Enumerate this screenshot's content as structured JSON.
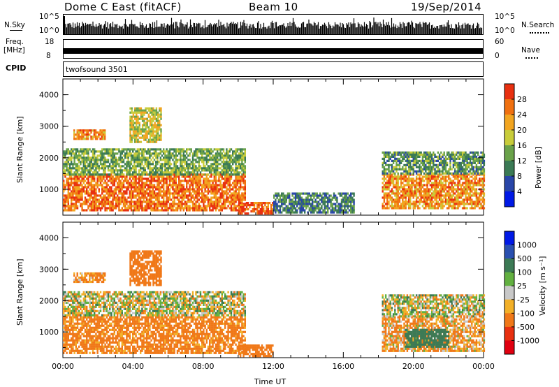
{
  "header": {
    "station": "Dome C East (fitACF)",
    "beam": "Beam 10",
    "date": "19/Sep/2014"
  },
  "strips": {
    "nsky_label": "N.Sky",
    "nsky_ticks": [
      "10^5",
      "10^0"
    ],
    "nsearch_label": "N.Search",
    "nsearch_ticks": [
      "10^5",
      "10^0"
    ],
    "freq_label_1": "Freq.",
    "freq_label_2": "[MHz]",
    "freq_ticks": [
      "18",
      "8"
    ],
    "nave_label": "Nave",
    "nave_ticks": [
      "60",
      "0"
    ],
    "cpid_label": "CPID",
    "cpid_value": "twofsound 3501"
  },
  "chart_data": [
    {
      "type": "heatmap",
      "title": "",
      "ylabel": "Slant Range [km]",
      "xlabel": "",
      "x_ticks": [
        "00:00",
        "04:00",
        "08:00",
        "12:00",
        "16:00",
        "20:00",
        "00:00"
      ],
      "y_ticks": [
        1000,
        2000,
        3000,
        4000
      ],
      "ylim": [
        180,
        4500
      ],
      "xlim_hours": [
        0,
        24
      ],
      "colorbar": {
        "label": "Power [dB]",
        "ticks": [
          4,
          8,
          12,
          16,
          20,
          24,
          28
        ],
        "range": [
          0,
          32
        ],
        "colors": [
          "#0019e6",
          "#2946a8",
          "#3b7a55",
          "#6aa24a",
          "#c8cc3a",
          "#f2a520",
          "#f07010",
          "#e83010"
        ]
      },
      "echo_regions": [
        {
          "t0": 0.0,
          "t1": 10.4,
          "r0": 350,
          "r1": 1500,
          "value": 26
        },
        {
          "t0": 0.0,
          "t1": 10.4,
          "r0": 1500,
          "r1": 2300,
          "value": 14
        },
        {
          "t0": 0.6,
          "t1": 2.4,
          "r0": 2600,
          "r1": 2900,
          "value": 24
        },
        {
          "t0": 3.8,
          "t1": 5.6,
          "r0": 2500,
          "r1": 3600,
          "value": 18
        },
        {
          "t0": 10.0,
          "t1": 12.0,
          "r0": 220,
          "r1": 600,
          "value": 28
        },
        {
          "t0": 12.0,
          "t1": 16.6,
          "r0": 300,
          "r1": 900,
          "value": 10
        },
        {
          "t0": 18.2,
          "t1": 24.0,
          "r0": 400,
          "r1": 1500,
          "value": 24
        },
        {
          "t0": 18.2,
          "t1": 24.0,
          "r0": 1500,
          "r1": 2200,
          "value": 12
        }
      ]
    },
    {
      "type": "heatmap",
      "title": "",
      "ylabel": "Slant Range [km]",
      "xlabel": "Time UT",
      "x_ticks": [
        "00:00",
        "04:00",
        "08:00",
        "12:00",
        "16:00",
        "20:00",
        "00:00"
      ],
      "y_ticks": [
        1000,
        2000,
        3000,
        4000
      ],
      "ylim": [
        180,
        4500
      ],
      "xlim_hours": [
        0,
        24
      ],
      "colorbar": {
        "label": "Velocity [m s⁻¹]",
        "ticks": [
          "1000",
          "500",
          "100",
          "25",
          "-25",
          "-100",
          "-500",
          "-1000"
        ],
        "colors": [
          "#0019e6",
          "#2a50b0",
          "#3c7a55",
          "#62b040",
          "#c8c8c8",
          "#f2b028",
          "#f07818",
          "#e83010",
          "#e00010"
        ]
      },
      "echo_regions": [
        {
          "t0": 0.0,
          "t1": 10.4,
          "r0": 350,
          "r1": 1500,
          "value": -200
        },
        {
          "t0": 0.0,
          "t1": 10.4,
          "r0": 1500,
          "r1": 2300,
          "value": 0
        },
        {
          "t0": 0.6,
          "t1": 2.4,
          "r0": 2600,
          "r1": 2900,
          "value": -150
        },
        {
          "t0": 3.8,
          "t1": 5.6,
          "r0": 2500,
          "r1": 3600,
          "value": -300
        },
        {
          "t0": 10.0,
          "t1": 12.0,
          "r0": 220,
          "r1": 600,
          "value": -300
        },
        {
          "t0": 18.2,
          "t1": 24.0,
          "r0": 400,
          "r1": 1500,
          "value": -100
        },
        {
          "t0": 19.5,
          "t1": 22.0,
          "r0": 500,
          "r1": 1100,
          "value": 300
        },
        {
          "t0": 18.2,
          "t1": 24.0,
          "r0": 1500,
          "r1": 2200,
          "value": 0
        }
      ]
    }
  ]
}
